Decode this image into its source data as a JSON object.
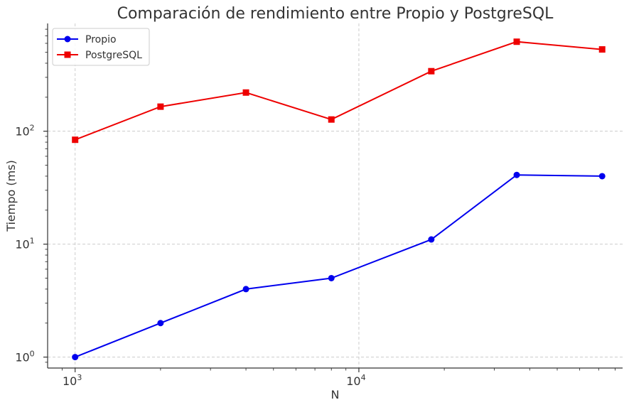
{
  "chart_data": {
    "type": "line",
    "title": "Comparación de rendimiento entre Propio y PostgreSQL",
    "xlabel": "N",
    "ylabel": "Tiempo (ms)",
    "xscale": "log",
    "yscale": "log",
    "xlim": [
      800,
      85000
    ],
    "ylim": [
      0.8,
      900
    ],
    "x": [
      1000,
      2000,
      4000,
      8000,
      18000,
      36000,
      72000
    ],
    "xticks": [
      {
        "value": 1000,
        "base": "10",
        "exp": "3"
      },
      {
        "value": 10000,
        "base": "10",
        "exp": "4"
      }
    ],
    "yticks": [
      {
        "value": 1,
        "base": "10",
        "exp": "0"
      },
      {
        "value": 10,
        "base": "10",
        "exp": "1"
      },
      {
        "value": 100,
        "base": "10",
        "exp": "2"
      }
    ],
    "grid": true,
    "legend_position": "top-left",
    "series": [
      {
        "name": "Propio",
        "color": "#0000ee",
        "marker": "circle",
        "values": [
          1.0,
          2.0,
          4.0,
          5.0,
          11.0,
          41.0,
          40.0
        ]
      },
      {
        "name": "PostgreSQL",
        "color": "#ee0000",
        "marker": "square",
        "values": [
          84,
          165,
          220,
          127,
          340,
          620,
          530
        ]
      }
    ]
  }
}
